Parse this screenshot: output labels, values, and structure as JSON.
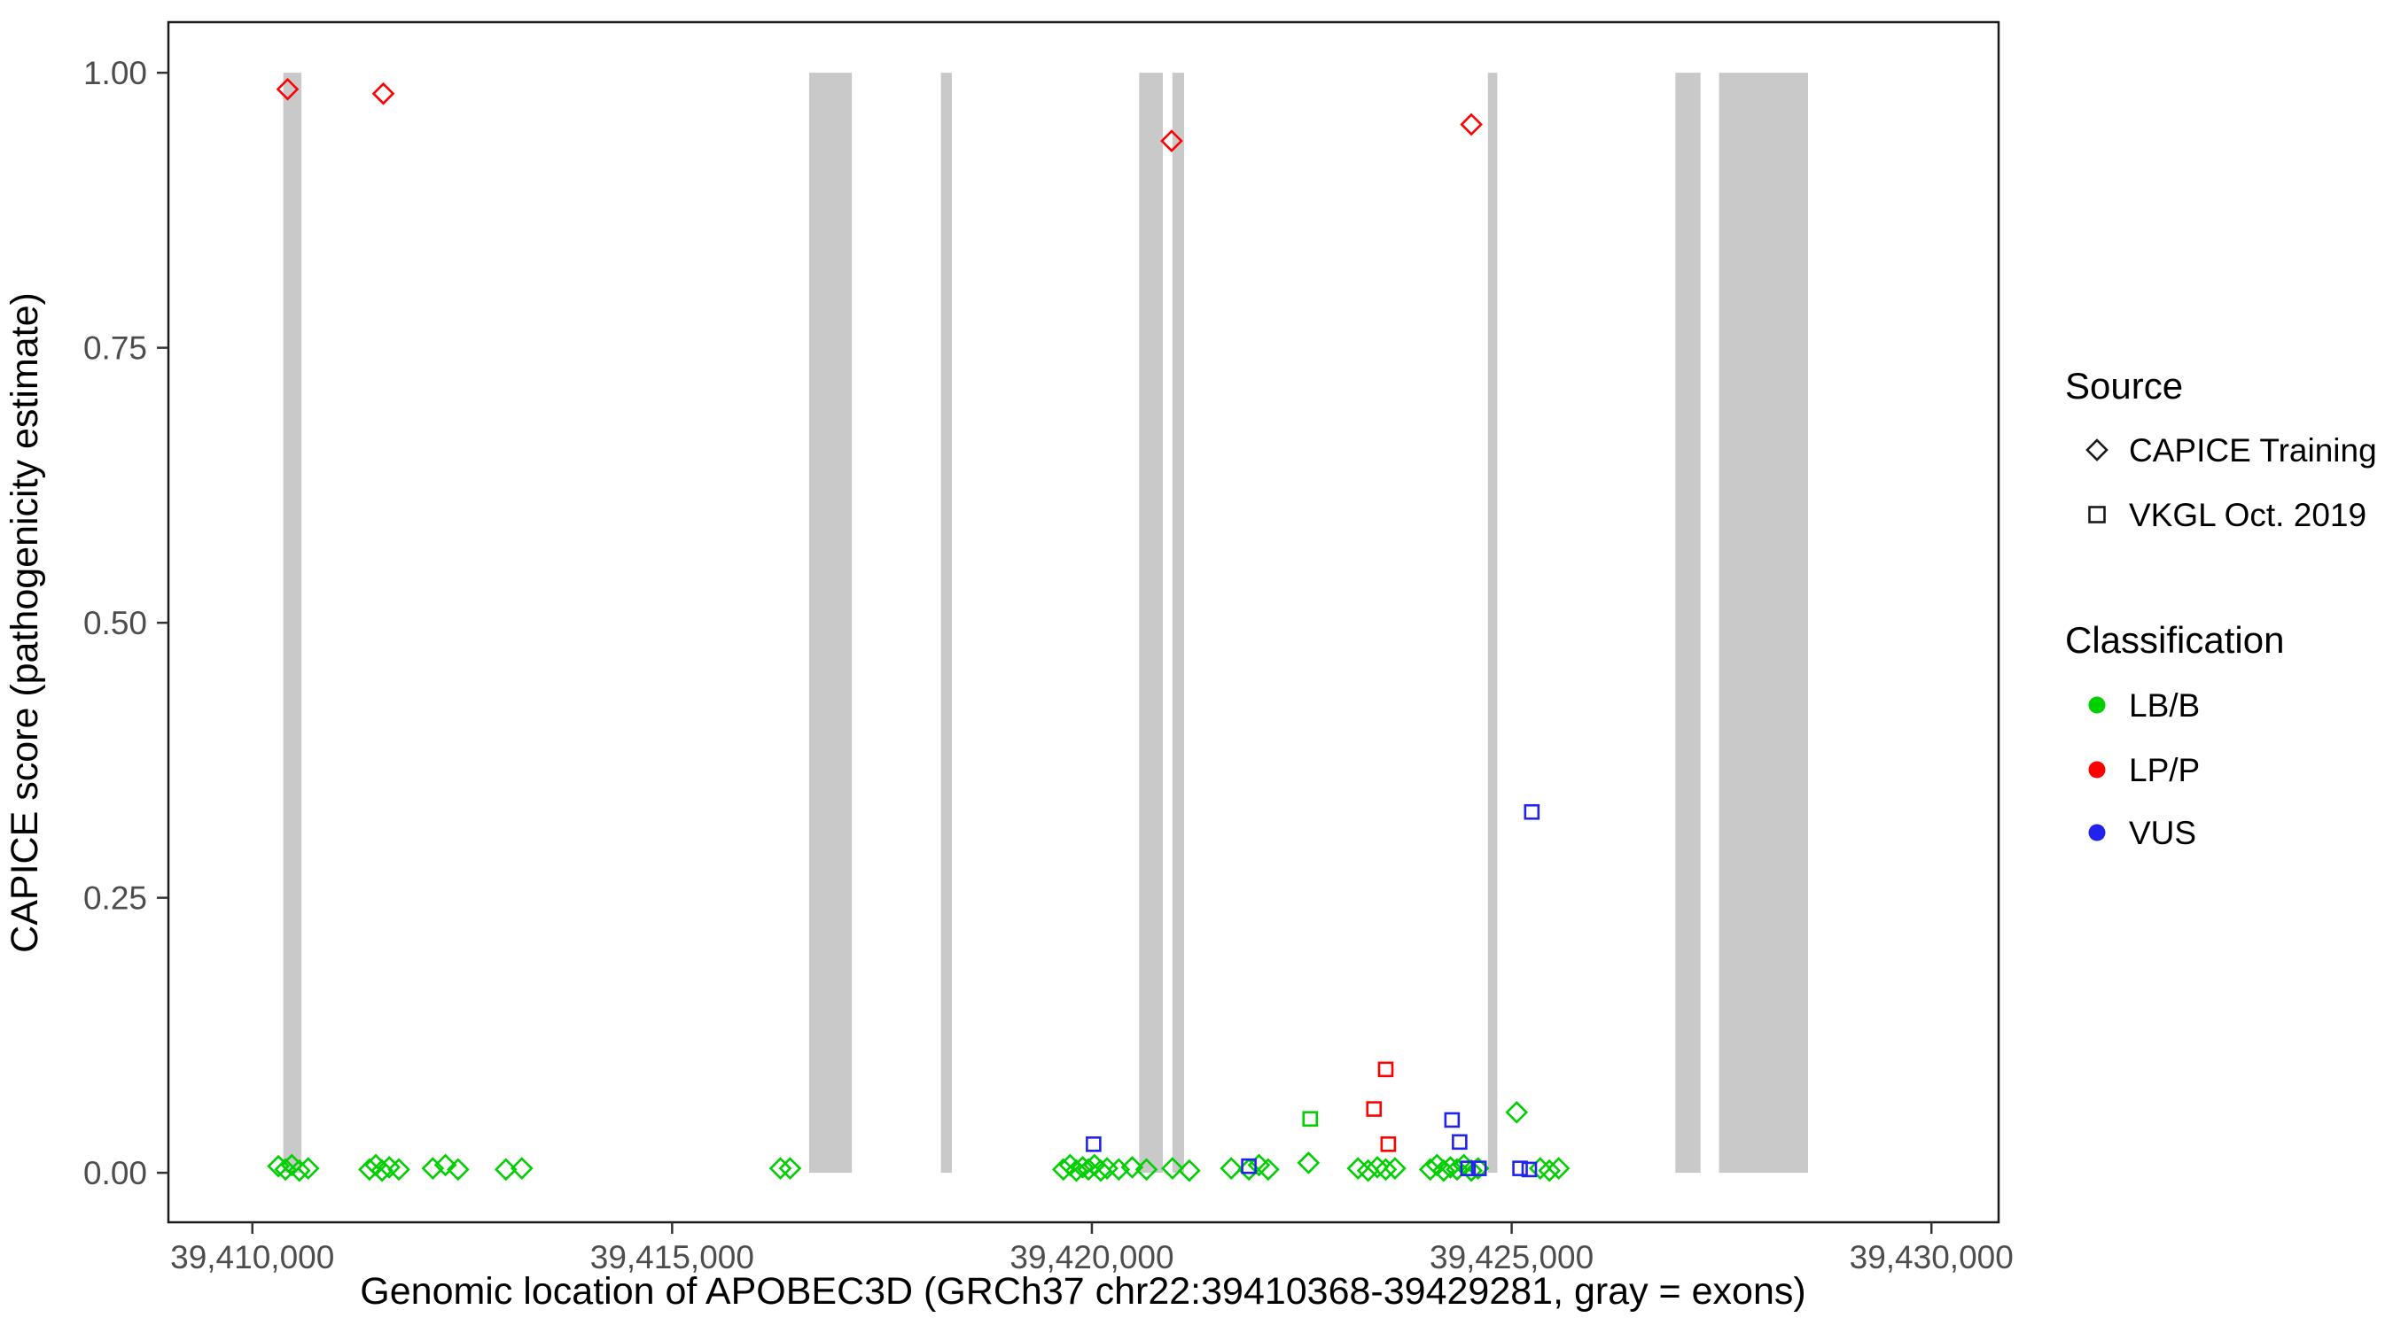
{
  "legend": {
    "source": {
      "title": "Source",
      "items": [
        {
          "symbol": "diamond",
          "label": "CAPICE Training"
        },
        {
          "symbol": "square",
          "label": "VKGL Oct. 2019"
        }
      ]
    },
    "classification": {
      "title": "Classification",
      "items": [
        {
          "label": "LB/B",
          "color_key": "lbb"
        },
        {
          "label": "LP/P",
          "color_key": "lpp"
        },
        {
          "label": "VUS",
          "color_key": "vus"
        }
      ]
    }
  },
  "chart_data": {
    "type": "scatter",
    "title": "",
    "xlabel": "Genomic location of APOBEC3D (GRCh37 chr22:39410368-39429281, gray = exons)",
    "ylabel": "CAPICE score (pathogenicity estimate)",
    "x_domain": [
      39409000,
      39430800
    ],
    "y_domain": [
      -0.045,
      1.046
    ],
    "x_ticks": {
      "values": [
        39410000,
        39415000,
        39420000,
        39425000,
        39430000
      ],
      "labels": [
        "39,410,000",
        "39,415,000",
        "39,420,000",
        "39,425,000",
        "39,430,000"
      ]
    },
    "y_ticks": {
      "values": [
        0,
        0.25,
        0.5,
        0.75,
        1
      ],
      "labels": [
        "0.00",
        "0.25",
        "0.50",
        "0.75",
        "1.00"
      ]
    },
    "grid": false,
    "legend_position": "right",
    "colors": {
      "lbb": "#00CF00",
      "lpp": "#FF0000",
      "vus": "#2222EE",
      "exon": "#C9C9C9"
    },
    "exons": [
      [
        39410368,
        39410585
      ],
      [
        39416632,
        39417141
      ],
      [
        39418202,
        39418332
      ],
      [
        39420563,
        39420845
      ],
      [
        39420959,
        39421098
      ],
      [
        39424717,
        39424829
      ],
      [
        39426950,
        39427250
      ],
      [
        39427470,
        39428530
      ]
    ],
    "series": [
      {
        "name": "LB/B (CAPICE Training)",
        "source": "CAPICE Training",
        "classification": "LB/B",
        "marker": "diamond",
        "color": "lbb",
        "points": [
          [
            39410310,
            0.006
          ],
          [
            39410395,
            0.003
          ],
          [
            39410470,
            0.007
          ],
          [
            39410560,
            0.002
          ],
          [
            39410665,
            0.004
          ],
          [
            39411395,
            0.003
          ],
          [
            39411470,
            0.007
          ],
          [
            39411545,
            0.002
          ],
          [
            39411630,
            0.005
          ],
          [
            39411745,
            0.003
          ],
          [
            39412150,
            0.004
          ],
          [
            39412300,
            0.007
          ],
          [
            39412450,
            0.003
          ],
          [
            39413020,
            0.003
          ],
          [
            39413210,
            0.004
          ],
          [
            39416290,
            0.004
          ],
          [
            39416405,
            0.004
          ],
          [
            39419660,
            0.003
          ],
          [
            39419740,
            0.007
          ],
          [
            39419815,
            0.002
          ],
          [
            39419890,
            0.005
          ],
          [
            39419960,
            0.003
          ],
          [
            39420030,
            0.007
          ],
          [
            39420105,
            0.002
          ],
          [
            39420180,
            0.004
          ],
          [
            39420320,
            0.003
          ],
          [
            39420480,
            0.005
          ],
          [
            39420650,
            0.003
          ],
          [
            39420960,
            0.004
          ],
          [
            39421160,
            0.002
          ],
          [
            39421660,
            0.004
          ],
          [
            39421870,
            0.003
          ],
          [
            39421990,
            0.007
          ],
          [
            39422100,
            0.003
          ],
          [
            39422580,
            0.009
          ],
          [
            39423170,
            0.004
          ],
          [
            39423290,
            0.002
          ],
          [
            39423400,
            0.005
          ],
          [
            39423500,
            0.003
          ],
          [
            39423610,
            0.004
          ],
          [
            39424030,
            0.003
          ],
          [
            39424110,
            0.007
          ],
          [
            39424190,
            0.002
          ],
          [
            39424270,
            0.005
          ],
          [
            39424350,
            0.003
          ],
          [
            39424430,
            0.007
          ],
          [
            39424520,
            0.002
          ],
          [
            39424600,
            0.004
          ],
          [
            39425060,
            0.055
          ],
          [
            39425340,
            0.004
          ],
          [
            39425450,
            0.002
          ],
          [
            39425560,
            0.004
          ]
        ]
      },
      {
        "name": "LB/B (VKGL Oct. 2019)",
        "source": "VKGL Oct. 2019",
        "classification": "LB/B",
        "marker": "square",
        "color": "lbb",
        "points": [
          [
            39422600,
            0.049
          ]
        ]
      },
      {
        "name": "VUS (VKGL Oct. 2019)",
        "source": "VKGL Oct. 2019",
        "classification": "VUS",
        "marker": "square",
        "color": "vus",
        "points": [
          [
            39420020,
            0.026
          ],
          [
            39421870,
            0.006
          ],
          [
            39424290,
            0.048
          ],
          [
            39424380,
            0.028
          ],
          [
            39424480,
            0.004
          ],
          [
            39424610,
            0.004
          ],
          [
            39425100,
            0.004
          ],
          [
            39425210,
            0.003
          ],
          [
            39425240,
            0.328
          ]
        ]
      },
      {
        "name": "LP/P (VKGL Oct. 2019)",
        "source": "VKGL Oct. 2019",
        "classification": "LP/P",
        "marker": "square",
        "color": "lpp",
        "points": [
          [
            39423500,
            0.094
          ],
          [
            39423360,
            0.058
          ],
          [
            39423530,
            0.026
          ]
        ]
      },
      {
        "name": "LP/P (CAPICE Training)",
        "source": "CAPICE Training",
        "classification": "LP/P",
        "marker": "diamond",
        "color": "lpp",
        "points": [
          [
            39410420,
            0.985
          ],
          [
            39411560,
            0.981
          ],
          [
            39420950,
            0.938
          ],
          [
            39424520,
            0.953
          ]
        ]
      }
    ]
  }
}
